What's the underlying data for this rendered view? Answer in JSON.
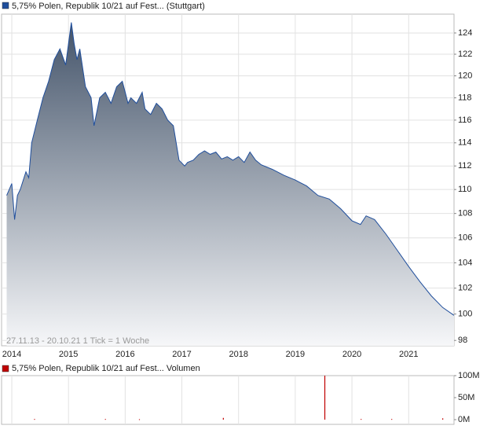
{
  "chart_data": [
    {
      "type": "area",
      "log_scale": true,
      "grid": true,
      "annotation": "27.11.13 - 20.10.21   1 Tick = 1 Woche",
      "x": [
        2013.91,
        2014.0,
        2014.05,
        2014.1,
        2014.15,
        2014.25,
        2014.3,
        2014.35,
        2014.45,
        2014.55,
        2014.65,
        2014.75,
        2014.85,
        2014.95,
        2015.05,
        2015.1,
        2015.15,
        2015.2,
        2015.3,
        2015.4,
        2015.45,
        2015.55,
        2015.65,
        2015.75,
        2015.85,
        2015.95,
        2016.0,
        2016.05,
        2016.1,
        2016.2,
        2016.3,
        2016.35,
        2016.45,
        2016.55,
        2016.65,
        2016.75,
        2016.85,
        2016.9,
        2016.95,
        2017.05,
        2017.1,
        2017.2,
        2017.3,
        2017.4,
        2017.5,
        2017.6,
        2017.7,
        2017.8,
        2017.9,
        2018.0,
        2018.1,
        2018.2,
        2018.3,
        2018.4,
        2018.6,
        2018.8,
        2019.0,
        2019.2,
        2019.4,
        2019.6,
        2019.8,
        2020.0,
        2020.15,
        2020.25,
        2020.4,
        2020.6,
        2020.8,
        2021.0,
        2021.2,
        2021.4,
        2021.6,
        2021.8
      ],
      "series": [
        {
          "name": "5,75% Polen, Republik 10/21 auf Fest... (Stuttgart)",
          "color": "#1f4e9c",
          "values": [
            109.5,
            110.5,
            107.5,
            109.5,
            110,
            111.5,
            111,
            114,
            116,
            118,
            119.5,
            121.5,
            122.5,
            121,
            125,
            123,
            121.5,
            122.5,
            119,
            118,
            115.5,
            118,
            118.5,
            117.5,
            119,
            119.5,
            118.5,
            117.5,
            118,
            117.5,
            118.5,
            117,
            116.5,
            117.5,
            117,
            116,
            115.5,
            114,
            112.5,
            112,
            112.3,
            112.5,
            113,
            113.3,
            113,
            113.2,
            112.6,
            112.8,
            112.5,
            112.8,
            112.3,
            113.2,
            112.5,
            112.1,
            111.7,
            111.2,
            110.8,
            110.3,
            109.5,
            109.2,
            108.4,
            107.4,
            107.1,
            107.8,
            107.5,
            106.3,
            105,
            103.7,
            102.5,
            101.4,
            100.5,
            99.9
          ]
        }
      ],
      "xlim": [
        2013.82,
        2021.8
      ],
      "xticks": [
        2014,
        2015,
        2016,
        2017,
        2018,
        2019,
        2020,
        2021
      ],
      "ylim": [
        97.6,
        125.8
      ],
      "yticks": [
        98,
        100,
        102,
        104,
        106,
        108,
        110,
        112,
        114,
        116,
        118,
        120,
        122,
        124
      ]
    },
    {
      "type": "bar",
      "x": [
        2014.4,
        2015.65,
        2016.25,
        2017.73,
        2019.52,
        2020.16,
        2020.7,
        2021.6
      ],
      "series": [
        {
          "name": "5,75% Polen, Republik 10/21 auf Fest... Volumen",
          "color": "#c00000",
          "values": [
            1500000,
            1500000,
            1000000,
            4000000,
            100000000,
            1500000,
            1500000,
            3000000
          ]
        }
      ],
      "xlim": [
        2013.82,
        2021.8
      ],
      "ylim": [
        0,
        100000000
      ],
      "yticks": [
        {
          "value": 0,
          "label": "0M"
        },
        {
          "value": 50000000,
          "label": "50M"
        },
        {
          "value": 100000000,
          "label": "100M"
        }
      ]
    }
  ]
}
